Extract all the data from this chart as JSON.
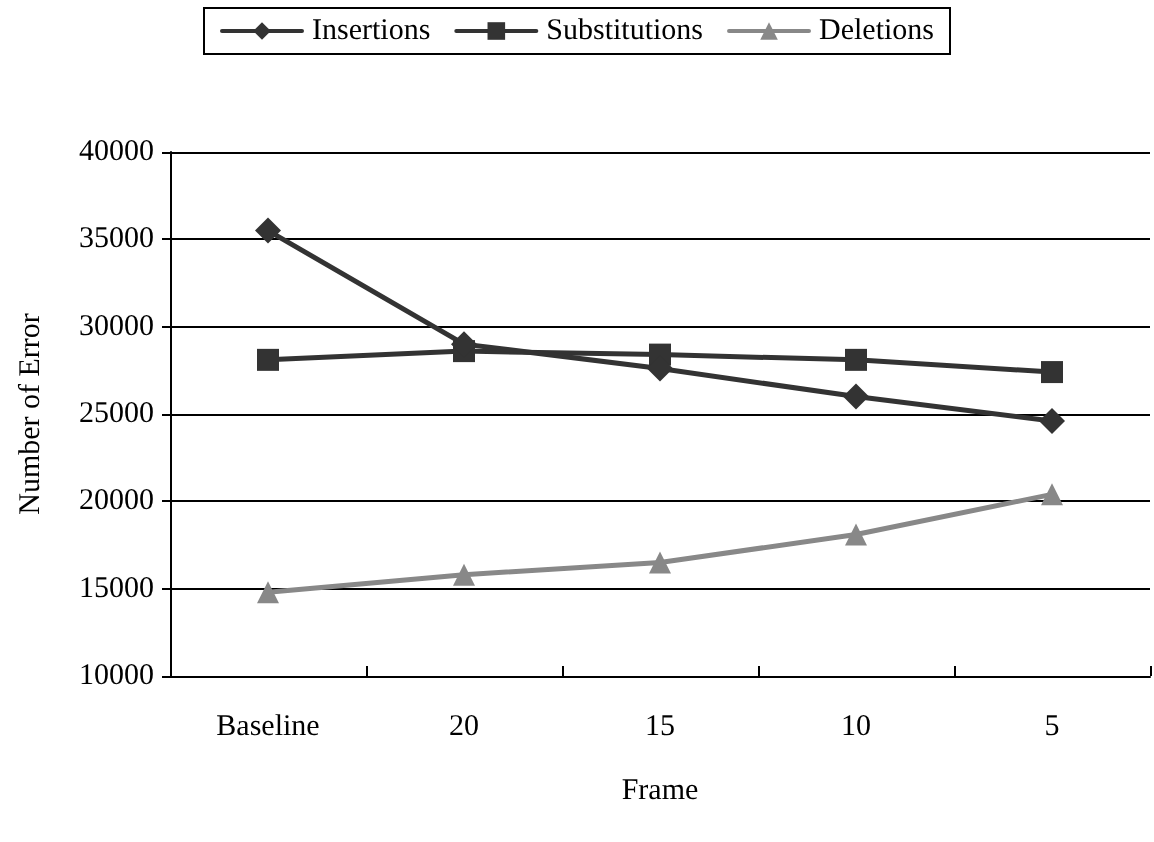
{
  "chart_data": {
    "type": "line",
    "xlabel": "Frame",
    "ylabel": "Number of Error",
    "categories": [
      "Baseline",
      "20",
      "15",
      "10",
      "5"
    ],
    "series": [
      {
        "name": "Insertions",
        "color": "#333333",
        "marker": "diamond",
        "values": [
          35500,
          29000,
          27600,
          26000,
          24600
        ]
      },
      {
        "name": "Substitutions",
        "color": "#333333",
        "marker": "square",
        "values": [
          28100,
          28600,
          28400,
          28100,
          27400
        ]
      },
      {
        "name": "Deletions",
        "color": "#888888",
        "marker": "triangle",
        "values": [
          14800,
          15800,
          16500,
          18100,
          20400
        ]
      }
    ],
    "ylim": [
      10000,
      40000
    ],
    "yticks": [
      10000,
      15000,
      20000,
      25000,
      30000,
      35000,
      40000
    ],
    "grid": "y",
    "legend": "top",
    "line_style": "solid"
  }
}
